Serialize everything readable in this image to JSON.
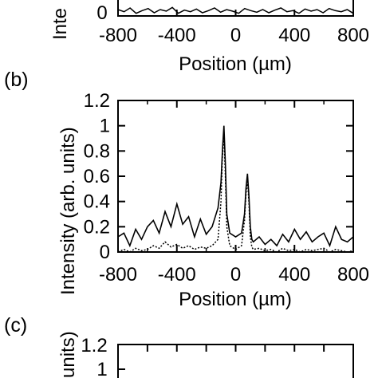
{
  "panels": [
    {
      "label": "",
      "x_ticks": [
        "-800",
        "-400",
        "0",
        "400",
        "800"
      ],
      "y_ticks": [
        "0"
      ],
      "xlabel": "Position (µm)",
      "ylabel": "Inte"
    },
    {
      "label": "(b)",
      "x_ticks": [
        "-800",
        "-400",
        "0",
        "400",
        "800"
      ],
      "y_ticks": [
        "0",
        "0.2",
        "0.4",
        "0.6",
        "0.8",
        "1",
        "1.2"
      ],
      "xlabel": "Position (µm)",
      "ylabel": "Intensity (arb. units)"
    },
    {
      "label": "(c)",
      "x_ticks": [],
      "y_ticks": [
        "1",
        "1.2"
      ],
      "xlabel": "",
      "ylabel": "units)"
    }
  ],
  "chart_data": {
    "type": "line",
    "xlabel": "Position (µm)",
    "ylabel": "Intensity (arb. units)",
    "xlim": [
      -800,
      800
    ],
    "ylim": [
      0,
      1.2
    ],
    "x": [
      -800,
      -760,
      -720,
      -680,
      -640,
      -600,
      -560,
      -520,
      -480,
      -440,
      -400,
      -360,
      -320,
      -280,
      -240,
      -200,
      -160,
      -120,
      -100,
      -90,
      -80,
      -70,
      -60,
      -40,
      0,
      40,
      60,
      70,
      80,
      90,
      100,
      110,
      120,
      160,
      200,
      240,
      280,
      320,
      360,
      400,
      440,
      480,
      520,
      560,
      600,
      640,
      680,
      720,
      760,
      800
    ],
    "series": [
      {
        "values": [
          0.12,
          0.15,
          0.05,
          0.18,
          0.1,
          0.2,
          0.25,
          0.15,
          0.32,
          0.2,
          0.38,
          0.22,
          0.28,
          0.12,
          0.26,
          0.14,
          0.2,
          0.35,
          0.55,
          0.8,
          1.0,
          0.7,
          0.3,
          0.15,
          0.12,
          0.15,
          0.3,
          0.5,
          0.62,
          0.45,
          0.2,
          0.1,
          0.08,
          0.12,
          0.06,
          0.1,
          0.05,
          0.14,
          0.08,
          0.18,
          0.1,
          0.16,
          0.08,
          0.12,
          0.15,
          0.05,
          0.2,
          0.1,
          0.08,
          0.12
        ],
        "style": "solid"
      },
      {
        "values": [
          0.0,
          0.02,
          0.0,
          0.03,
          0.01,
          0.02,
          0.05,
          0.03,
          0.08,
          0.04,
          0.06,
          0.03,
          0.05,
          0.02,
          0.04,
          0.03,
          0.05,
          0.1,
          0.4,
          0.75,
          0.95,
          0.6,
          0.2,
          0.05,
          0.02,
          0.05,
          0.25,
          0.45,
          0.58,
          0.4,
          0.12,
          0.04,
          0.02,
          0.03,
          0.01,
          0.02,
          0.0,
          0.03,
          0.01,
          0.02,
          0.0,
          0.02,
          0.01,
          0.02,
          0.03,
          0.0,
          0.02,
          0.01,
          0.0,
          0.01
        ],
        "style": "dotted"
      }
    ]
  },
  "top_panel_data": {
    "ylim": [
      0,
      1.2
    ],
    "solid": [
      0.12,
      0.08,
      0.15,
      0.05,
      0.1,
      0.14,
      0.06,
      0.12,
      0.09,
      0.16,
      0.05,
      0.11,
      0.08,
      0.13,
      0.06,
      0.1,
      0.15,
      0.07,
      0.12,
      0.09,
      0.05,
      0.14,
      0.1,
      0.07,
      0.12,
      0.06,
      0.11,
      0.15,
      0.08,
      0.1,
      0.05,
      0.13,
      0.09,
      0.12,
      0.06,
      0.14,
      0.1,
      0.08,
      0.12,
      0.05
    ]
  }
}
